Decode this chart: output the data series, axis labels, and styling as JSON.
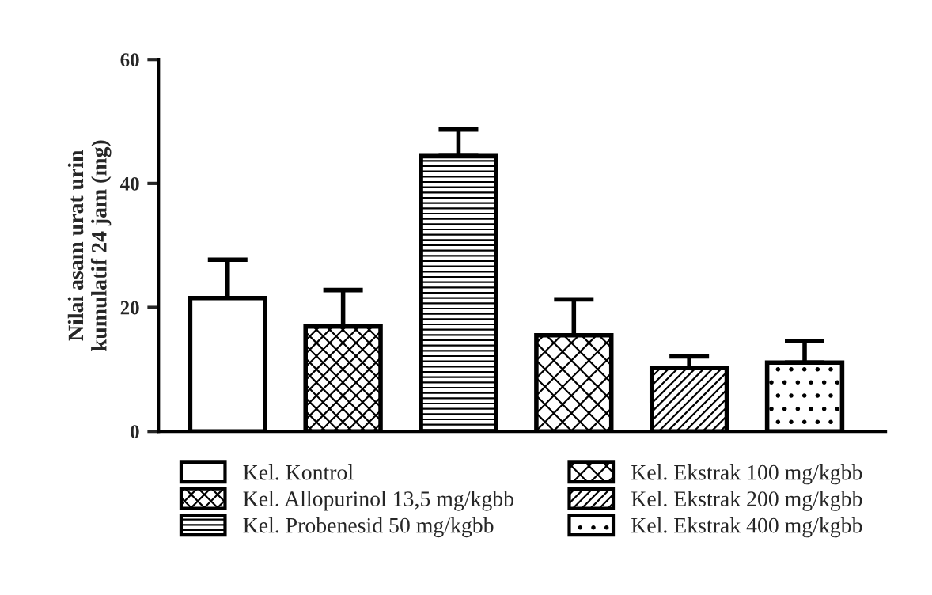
{
  "chart_data": {
    "type": "bar",
    "ylabel": "Nilai asam urat urin\nkumulatif 24 jam (mg)",
    "categories": [
      null,
      null,
      null,
      null,
      null,
      null
    ],
    "series": [
      {
        "name": "Kel. Kontrol",
        "color": "#ffffff",
        "values": [
          21.5,
          null,
          null,
          null,
          null,
          null
        ],
        "errors": [
          [
            21.5,
            27.7
          ],
          null,
          null,
          null,
          null,
          null
        ]
      },
      {
        "name": "Kel. Allopurinol 13,5 mg/kgbb",
        "color": "#000000",
        "values": [
          null,
          16.9,
          null,
          null,
          null,
          null
        ],
        "errors": [
          null,
          [
            16.9,
            22.8
          ],
          null,
          null,
          null,
          null
        ]
      },
      {
        "name": "Kel. Probenesid 50 mg/kgbb",
        "color": "#000000",
        "values": [
          null,
          null,
          44.4,
          null,
          null,
          null
        ],
        "errors": [
          null,
          null,
          [
            44.4,
            48.7
          ],
          null,
          null,
          null
        ]
      },
      {
        "name": "Kel. Ekstrak 100 mg/kgbb",
        "color": "#000000",
        "values": [
          null,
          null,
          null,
          15.5,
          null,
          null
        ],
        "errors": [
          null,
          null,
          null,
          [
            15.5,
            21.3
          ],
          null,
          null
        ]
      },
      {
        "name": "Kel. Ekstrak 200 mg/kgbb",
        "color": "#000000",
        "values": [
          null,
          null,
          null,
          null,
          10.2,
          null
        ],
        "errors": [
          null,
          null,
          null,
          null,
          [
            10.2,
            12.1
          ],
          null
        ]
      },
      {
        "name": "Kel. Ekstrak 400 mg/kgbb",
        "color": "#000000",
        "values": [
          null,
          null,
          null,
          null,
          null,
          11.1
        ],
        "errors": [
          null,
          null,
          null,
          null,
          null,
          [
            11.1,
            14.6
          ]
        ]
      }
    ],
    "ylim": [
      0,
      60
    ],
    "yticks": [
      0,
      20,
      40,
      60
    ],
    "grid": false,
    "legend": "bottom"
  }
}
